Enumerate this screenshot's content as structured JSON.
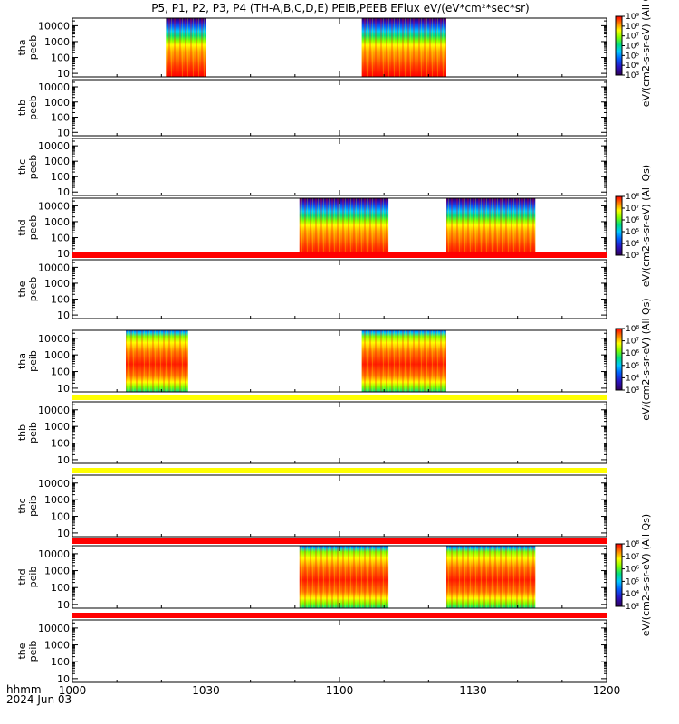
{
  "chart_data": {
    "type": "heatmap",
    "title": "P5, P1, P2, P3, P4 (TH-A,B,C,D,E) PEIB,PEEB EFlux eV/(eV*cm²*sec*sr)",
    "x_axis": {
      "range_min": [
        600,
        720
      ],
      "ticks": [
        {
          "min": 600,
          "label": "1000"
        },
        {
          "min": 630,
          "label": "1030"
        },
        {
          "min": 660,
          "label": "1100"
        },
        {
          "min": 690,
          "label": "1130"
        },
        {
          "min": 720,
          "label": "1200"
        }
      ],
      "corner_label": "hhmm",
      "date_label": "2024 Jun 03"
    },
    "y_scale": "log",
    "panels": [
      {
        "id": "tha-peeb",
        "label": [
          "tha",
          "peeb"
        ],
        "yrange": [
          6,
          30000
        ],
        "ticks": [
          {
            "v": 10,
            "t": "10"
          },
          {
            "v": 100,
            "t": "100"
          },
          {
            "v": 1000,
            "t": "1000"
          },
          {
            "v": 10000,
            "t": "10000"
          }
        ],
        "data": [
          [
            621,
            630
          ],
          [
            665,
            684
          ]
        ],
        "colorbar": {
          "label": "eV/(cm2-s-sr-eV) (All Qs)",
          "ticks": [
            "10³",
            "10⁴",
            "10⁵",
            "10⁶",
            "10⁷",
            "10⁸",
            "10⁹"
          ],
          "range": [
            3,
            9
          ]
        }
      },
      {
        "id": "thb-peeb",
        "label": [
          "thb",
          "peeb"
        ],
        "yrange": [
          6,
          30000
        ],
        "ticks": [
          {
            "v": 10,
            "t": "10"
          },
          {
            "v": 100,
            "t": "100"
          },
          {
            "v": 1000,
            "t": "1000"
          },
          {
            "v": 10000,
            "t": "10000"
          }
        ],
        "data": []
      },
      {
        "id": "thc-peeb",
        "label": [
          "thc",
          "peeb"
        ],
        "yrange": [
          6,
          30000
        ],
        "ticks": [
          {
            "v": 10,
            "t": "10"
          },
          {
            "v": 100,
            "t": "100"
          },
          {
            "v": 1000,
            "t": "1000"
          },
          {
            "v": 10000,
            "t": "10000"
          }
        ],
        "data": []
      },
      {
        "id": "thd-peeb",
        "label": [
          "thd",
          "peeb"
        ],
        "yrange": [
          6,
          30000
        ],
        "ticks": [
          {
            "v": 10,
            "t": "10"
          },
          {
            "v": 100,
            "t": "100"
          },
          {
            "v": 1000,
            "t": "1000"
          },
          {
            "v": 10000,
            "t": "10000"
          }
        ],
        "data": [
          [
            651,
            671
          ],
          [
            684,
            704
          ]
        ],
        "colorbar": {
          "label": "eV/(cm2-s-sr-eV) (All Qs)",
          "ticks": [
            "10³",
            "10⁴",
            "10⁵",
            "10⁶",
            "10⁷",
            "10⁸"
          ],
          "range": [
            3,
            8
          ]
        }
      },
      {
        "id": "the-peeb",
        "label": [
          "the",
          "peeb"
        ],
        "yrange": [
          6,
          30000
        ],
        "ticks": [
          {
            "v": 10,
            "t": "10"
          },
          {
            "v": 100,
            "t": "100"
          },
          {
            "v": 1000,
            "t": "1000"
          },
          {
            "v": 10000,
            "t": "10000"
          }
        ],
        "data": [],
        "top_band": "#ff0000"
      },
      {
        "id": "tha-peib",
        "label": [
          "tha",
          "peib"
        ],
        "yrange": [
          6,
          30000
        ],
        "ticks": [
          {
            "v": 10,
            "t": "10"
          },
          {
            "v": 100,
            "t": "100"
          },
          {
            "v": 1000,
            "t": "1000"
          },
          {
            "v": 10000,
            "t": "10000"
          }
        ],
        "data": [
          [
            612,
            626
          ],
          [
            665,
            684
          ]
        ],
        "colorbar": {
          "label": "eV/(cm2-s-sr-eV) (All Qs)",
          "ticks": [
            "10³",
            "10⁴",
            "10⁵",
            "10⁶",
            "10⁷",
            "10⁸"
          ],
          "range": [
            3,
            8
          ]
        }
      },
      {
        "id": "thb-peib",
        "label": [
          "thb",
          "peib"
        ],
        "yrange": [
          6,
          30000
        ],
        "ticks": [
          {
            "v": 10,
            "t": "10"
          },
          {
            "v": 100,
            "t": "100"
          },
          {
            "v": 1000,
            "t": "1000"
          },
          {
            "v": 10000,
            "t": "10000"
          }
        ],
        "data": [],
        "top_band": "#ffff00"
      },
      {
        "id": "thc-peib",
        "label": [
          "thc",
          "peib"
        ],
        "yrange": [
          6,
          30000
        ],
        "ticks": [
          {
            "v": 10,
            "t": "10"
          },
          {
            "v": 100,
            "t": "100"
          },
          {
            "v": 1000,
            "t": "1000"
          },
          {
            "v": 10000,
            "t": "10000"
          }
        ],
        "data": [],
        "top_band": "#ffff00"
      },
      {
        "id": "thd-peib",
        "label": [
          "thd",
          "peib"
        ],
        "yrange": [
          6,
          30000
        ],
        "ticks": [
          {
            "v": 10,
            "t": "10"
          },
          {
            "v": 100,
            "t": "100"
          },
          {
            "v": 1000,
            "t": "1000"
          },
          {
            "v": 10000,
            "t": "10000"
          }
        ],
        "data": [
          [
            651,
            671
          ],
          [
            684,
            704
          ]
        ],
        "colorbar": {
          "label": "eV/(cm2-s-sr-eV) (All Qs)",
          "ticks": [
            "10³",
            "10⁴",
            "10⁵",
            "10⁶",
            "10⁷",
            "10⁸"
          ],
          "range": [
            3,
            8
          ]
        },
        "top_band": "#ff0000"
      },
      {
        "id": "the-peib",
        "label": [
          "the",
          "peib"
        ],
        "yrange": [
          6,
          30000
        ],
        "ticks": [
          {
            "v": 10,
            "t": "10"
          },
          {
            "v": 100,
            "t": "100"
          },
          {
            "v": 1000,
            "t": "1000"
          },
          {
            "v": 10000,
            "t": "10000"
          }
        ],
        "data": [],
        "top_band": "#ff0000"
      }
    ],
    "colormap": [
      "#30005a",
      "#2a12c0",
      "#0060ff",
      "#00c8ff",
      "#00e080",
      "#80ff00",
      "#ffff00",
      "#ff8000",
      "#ff0000"
    ]
  }
}
